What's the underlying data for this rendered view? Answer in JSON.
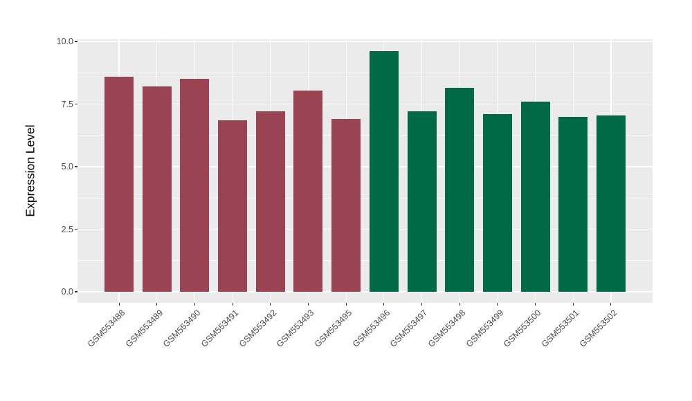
{
  "figure": {
    "background_color": "#FFFFFF",
    "panel_background_color": "#EBEBEB",
    "grid_color": "#FFFFFF",
    "axis_text_color": "#4D4D4D",
    "tick_mark_color": "#333333"
  },
  "chart_data": {
    "type": "bar",
    "title": "",
    "xlabel": "",
    "ylabel": "Expression Level",
    "ylim": [
      0,
      10
    ],
    "yticks": [
      0.0,
      2.5,
      5.0,
      7.5,
      10.0
    ],
    "ytick_labels": [
      "0.0",
      "2.5",
      "5.0",
      "7.5",
      "10.0"
    ],
    "minor_gridlines": [
      1.25,
      3.75,
      6.25,
      8.75
    ],
    "grid": "on",
    "legend_position": "none",
    "x_tick_angle_deg": 45,
    "categories": [
      "GSM553488",
      "GSM553489",
      "GSM553490",
      "GSM553491",
      "GSM553492",
      "GSM553493",
      "GSM553495",
      "GSM553496",
      "GSM553497",
      "GSM553498",
      "GSM553499",
      "GSM553500",
      "GSM553501",
      "GSM553502"
    ],
    "values": [
      8.6,
      8.2,
      8.5,
      6.85,
      7.2,
      8.05,
      6.9,
      9.6,
      7.2,
      8.15,
      7.1,
      7.6,
      7.0,
      7.05
    ],
    "bar_colors": [
      "#9A4352",
      "#9A4352",
      "#9A4352",
      "#9A4352",
      "#9A4352",
      "#9A4352",
      "#9A4352",
      "#006945",
      "#006945",
      "#006945",
      "#006945",
      "#006945",
      "#006945",
      "#006945"
    ],
    "group_colors": {
      "group1": "#9A4352",
      "group2": "#006945"
    }
  }
}
